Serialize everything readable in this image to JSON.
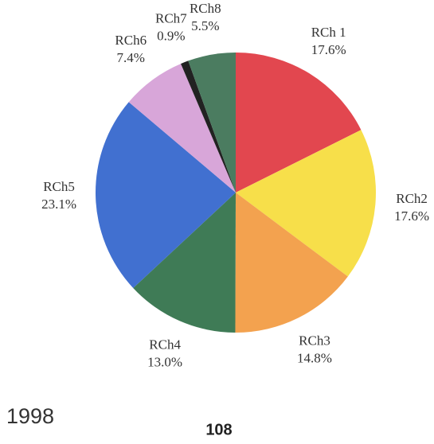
{
  "chart_data": {
    "type": "pie",
    "categories": [
      "RCh 1",
      "RCh2",
      "RCh3",
      "RCh4",
      "RCh5",
      "RCh6",
      "RCh7",
      "RCh8"
    ],
    "values": [
      17.6,
      17.6,
      14.8,
      13.0,
      23.1,
      7.4,
      0.9,
      5.5
    ],
    "value_labels": [
      "17.6%",
      "17.6%",
      "14.8%",
      "13.0%",
      "23.1%",
      "7.4%",
      "0.9%",
      "5.5%"
    ],
    "colors": [
      "#e2474f",
      "#f7df4a",
      "#f3a24f",
      "#3f7b56",
      "#4170d0",
      "#d8a6d9",
      "#222222",
      "#4b7c60"
    ]
  },
  "footer": {
    "year": "1998",
    "page": "108"
  }
}
